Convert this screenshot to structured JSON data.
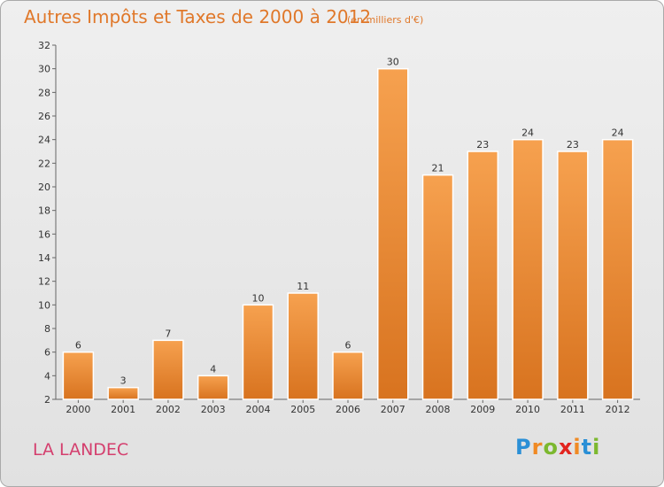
{
  "header": {
    "title": "Autres Impôts et Taxes de 2000 à 2012",
    "subtitle": "(en milliers d'€)"
  },
  "footer": {
    "location": "LA LANDEC",
    "brand_letters": [
      {
        "ch": "P",
        "color": "#2a8fd6"
      },
      {
        "ch": "r",
        "color": "#f08a24"
      },
      {
        "ch": "o",
        "color": "#7cb82f"
      },
      {
        "ch": "x",
        "color": "#e2241f"
      },
      {
        "ch": "i",
        "color": "#f08a24"
      },
      {
        "ch": "t",
        "color": "#2a8fd6"
      },
      {
        "ch": "i",
        "color": "#7cb82f"
      }
    ]
  },
  "chart_data": {
    "type": "bar",
    "categories": [
      "2000",
      "2001",
      "2002",
      "2003",
      "2004",
      "2005",
      "2006",
      "2007",
      "2008",
      "2009",
      "2010",
      "2011",
      "2012"
    ],
    "values": [
      6,
      3,
      7,
      4,
      10,
      11,
      6,
      30,
      21,
      23,
      24,
      23,
      24
    ],
    "ylim": [
      2,
      32
    ],
    "yticks": [
      2,
      4,
      6,
      8,
      10,
      12,
      14,
      16,
      18,
      20,
      22,
      24,
      26,
      28,
      30,
      32
    ],
    "grid": false,
    "bar_color_top": "#f6a14f",
    "bar_color_bottom": "#d8731f"
  }
}
